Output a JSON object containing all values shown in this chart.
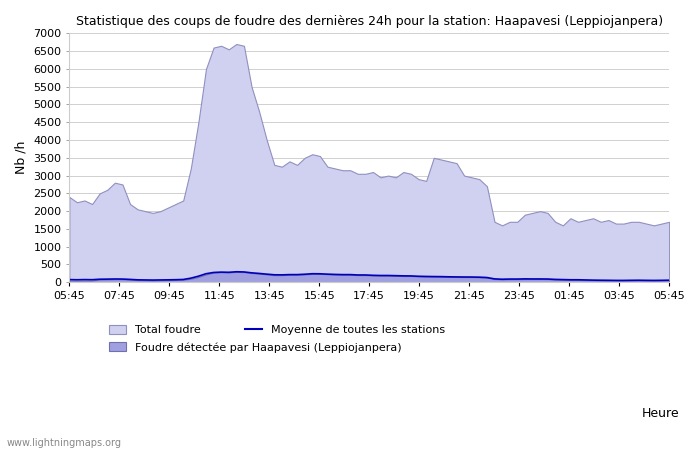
{
  "title": "Statistique des coups de foudre des dernières 24h pour la station: Haapavesi (Leppiojanpera)",
  "xlabel": "Heure",
  "ylabel": "Nb /h",
  "ylim": [
    0,
    7000
  ],
  "yticks": [
    0,
    500,
    1000,
    1500,
    2000,
    2500,
    3000,
    3500,
    4000,
    4500,
    5000,
    5500,
    6000,
    6500,
    7000
  ],
  "x_labels": [
    "05:45",
    "07:45",
    "09:45",
    "11:45",
    "13:45",
    "15:45",
    "17:45",
    "19:45",
    "21:45",
    "23:45",
    "01:45",
    "03:45",
    "05:45"
  ],
  "total_foudre": [
    2400,
    2250,
    2300,
    2200,
    2500,
    2600,
    2800,
    2750,
    2200,
    2050,
    2000,
    1950,
    2000,
    2100,
    2200,
    2300,
    3200,
    4500,
    6000,
    6600,
    6650,
    6550,
    6700,
    6650,
    5500,
    4800,
    4000,
    3300,
    3250,
    3400,
    3300,
    3500,
    3600,
    3550,
    3250,
    3200,
    3150,
    3150,
    3050,
    3050,
    3100,
    2950,
    3000,
    2950,
    3100,
    3050,
    2900,
    2850,
    3500,
    3450,
    3400,
    3350,
    3000,
    2950,
    2900,
    2700,
    1700,
    1600,
    1700,
    1700,
    1900,
    1950,
    2000,
    1950,
    1700,
    1600,
    1800,
    1700,
    1750,
    1800,
    1700,
    1750,
    1650,
    1650,
    1700,
    1700,
    1650,
    1600,
    1650,
    1700
  ],
  "local_foudre": [
    50,
    45,
    50,
    50,
    80,
    80,
    85,
    85,
    75,
    60,
    55,
    50,
    55,
    60,
    65,
    70,
    100,
    150,
    220,
    270,
    280,
    275,
    290,
    285,
    260,
    240,
    220,
    200,
    200,
    210,
    210,
    220,
    235,
    235,
    225,
    215,
    210,
    210,
    200,
    200,
    190,
    185,
    185,
    180,
    175,
    175,
    165,
    160,
    155,
    155,
    150,
    148,
    145,
    145,
    140,
    130,
    90,
    80,
    85,
    85,
    90,
    90,
    90,
    88,
    75,
    70,
    65,
    65,
    60,
    55,
    52,
    50,
    48,
    48,
    50,
    52,
    50,
    48,
    50,
    55
  ],
  "moyenne": [
    75,
    70,
    75,
    72,
    85,
    88,
    92,
    90,
    80,
    68,
    65,
    62,
    65,
    68,
    72,
    78,
    115,
    170,
    240,
    275,
    285,
    280,
    295,
    290,
    265,
    248,
    228,
    210,
    208,
    215,
    215,
    225,
    240,
    238,
    228,
    220,
    215,
    215,
    205,
    205,
    195,
    190,
    190,
    185,
    180,
    178,
    168,
    163,
    160,
    158,
    153,
    150,
    148,
    147,
    143,
    133,
    95,
    85,
    90,
    90,
    95,
    93,
    93,
    91,
    80,
    75,
    70,
    70,
    65,
    60,
    57,
    55,
    52,
    52,
    55,
    57,
    54,
    52,
    54,
    58
  ],
  "fill_total_color": "#d0d0f0",
  "fill_local_color": "#a0a0e0",
  "line_moyenne_color": "#0000bb",
  "background_color": "#ffffff",
  "grid_color": "#d0d0d0",
  "watermark": "www.lightningmaps.org",
  "legend_total": "Total foudre",
  "legend_local": "Foudre détectée par Haapavesi (Leppiojanpera)",
  "legend_moyenne": "Moyenne de toutes les stations"
}
